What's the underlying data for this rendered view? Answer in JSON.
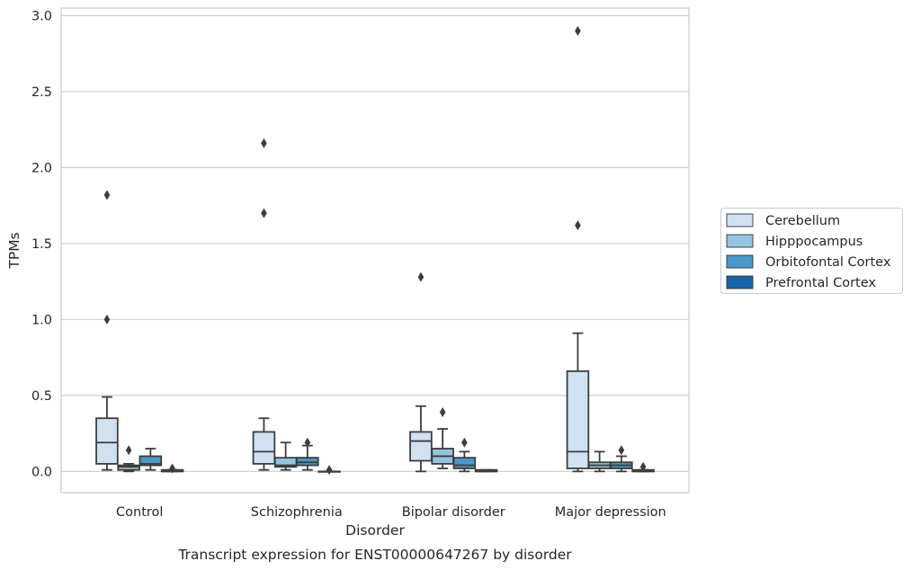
{
  "chart_data": {
    "type": "box",
    "caption": "Transcript expression for ENST00000647267 by disorder",
    "xlabel": "Disorder",
    "ylabel": "TPMs",
    "ylim": [
      -0.14,
      3.05
    ],
    "yticks": [
      0.0,
      0.5,
      1.0,
      1.5,
      2.0,
      2.5,
      3.0
    ],
    "ytick_labels": [
      "0.0",
      "0.5",
      "1.0",
      "1.5",
      "2.0",
      "2.5",
      "3.0"
    ],
    "grid": "horizontal",
    "legend_position": "right",
    "categories": [
      "Control",
      "Schizophrenia",
      "Bipolar disorder",
      "Major depression"
    ],
    "series": [
      {
        "name": "Cerebellum",
        "color": "#d0e1f2",
        "boxes": [
          {
            "whisker_low": 0.01,
            "q1": 0.05,
            "median": 0.19,
            "q3": 0.35,
            "whisker_high": 0.49,
            "outliers": [
              1.0,
              1.82
            ]
          },
          {
            "whisker_low": 0.01,
            "q1": 0.05,
            "median": 0.13,
            "q3": 0.26,
            "whisker_high": 0.35,
            "outliers": [
              1.7,
              2.16
            ]
          },
          {
            "whisker_low": 0.0,
            "q1": 0.07,
            "median": 0.2,
            "q3": 0.26,
            "whisker_high": 0.43,
            "outliers": [
              1.28
            ]
          },
          {
            "whisker_low": 0.0,
            "q1": 0.02,
            "median": 0.13,
            "q3": 0.66,
            "whisker_high": 0.91,
            "outliers": [
              1.62,
              2.9
            ]
          }
        ]
      },
      {
        "name": "Hipppocampus",
        "color": "#94c4df",
        "boxes": [
          {
            "whisker_low": 0.0,
            "q1": 0.01,
            "median": 0.03,
            "q3": 0.04,
            "whisker_high": 0.05,
            "outliers": [
              0.14
            ]
          },
          {
            "whisker_low": 0.01,
            "q1": 0.03,
            "median": 0.04,
            "q3": 0.09,
            "whisker_high": 0.19,
            "outliers": []
          },
          {
            "whisker_low": 0.02,
            "q1": 0.05,
            "median": 0.1,
            "q3": 0.15,
            "whisker_high": 0.28,
            "outliers": [
              0.39
            ]
          },
          {
            "whisker_low": 0.0,
            "q1": 0.02,
            "median": 0.04,
            "q3": 0.06,
            "whisker_high": 0.13,
            "outliers": []
          }
        ]
      },
      {
        "name": "Orbitofontal Cortex",
        "color": "#4a98c9",
        "boxes": [
          {
            "whisker_low": 0.01,
            "q1": 0.04,
            "median": 0.05,
            "q3": 0.1,
            "whisker_high": 0.15,
            "outliers": []
          },
          {
            "whisker_low": 0.01,
            "q1": 0.04,
            "median": 0.06,
            "q3": 0.09,
            "whisker_high": 0.17,
            "outliers": [
              0.19
            ]
          },
          {
            "whisker_low": 0.0,
            "q1": 0.02,
            "median": 0.04,
            "q3": 0.09,
            "whisker_high": 0.13,
            "outliers": [
              0.19
            ]
          },
          {
            "whisker_low": 0.0,
            "q1": 0.02,
            "median": 0.04,
            "q3": 0.06,
            "whisker_high": 0.1,
            "outliers": [
              0.14
            ]
          }
        ]
      },
      {
        "name": "Prefrontal Cortex",
        "color": "#1764ab",
        "boxes": [
          {
            "whisker_low": 0.0,
            "q1": 0.0,
            "median": 0.0,
            "q3": 0.01,
            "whisker_high": 0.01,
            "outliers": [
              0.02
            ]
          },
          {
            "whisker_low": 0.0,
            "q1": 0.0,
            "median": 0.0,
            "q3": 0.0,
            "whisker_high": 0.0,
            "outliers": [
              0.01
            ]
          },
          {
            "whisker_low": 0.0,
            "q1": 0.0,
            "median": 0.0,
            "q3": 0.01,
            "whisker_high": 0.01,
            "outliers": []
          },
          {
            "whisker_low": 0.0,
            "q1": 0.0,
            "median": 0.0,
            "q3": 0.01,
            "whisker_high": 0.01,
            "outliers": [
              0.03
            ]
          }
        ]
      }
    ]
  }
}
